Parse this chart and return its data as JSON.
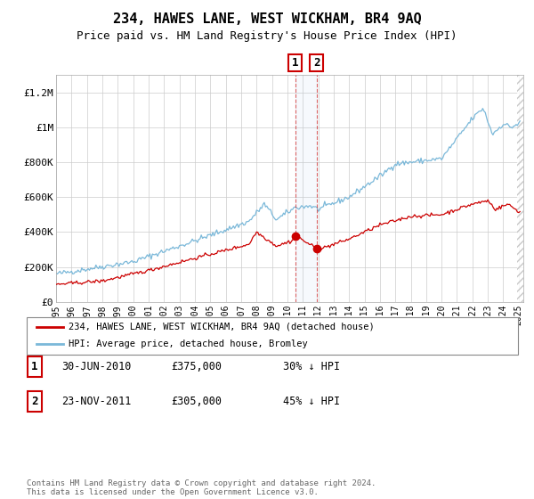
{
  "title": "234, HAWES LANE, WEST WICKHAM, BR4 9AQ",
  "subtitle": "Price paid vs. HM Land Registry's House Price Index (HPI)",
  "title_fontsize": 11,
  "subtitle_fontsize": 9,
  "background_color": "#ffffff",
  "plot_bg_color": "#ffffff",
  "grid_color": "#cccccc",
  "hpi_color": "#7ab8d9",
  "price_color": "#cc0000",
  "ylim": [
    0,
    1300000
  ],
  "yticks": [
    0,
    200000,
    400000,
    600000,
    800000,
    1000000,
    1200000
  ],
  "ytick_labels": [
    "£0",
    "£200K",
    "£400K",
    "£600K",
    "£800K",
    "£1M",
    "£1.2M"
  ],
  "sale1_date": 2010.5,
  "sale1_price": 375000,
  "sale2_date": 2011.9,
  "sale2_price": 305000,
  "vspan_start": 2010.5,
  "vspan_end": 2011.9,
  "vline1": 2010.5,
  "vline2": 2011.9,
  "legend_label_red": "234, HAWES LANE, WEST WICKHAM, BR4 9AQ (detached house)",
  "legend_label_blue": "HPI: Average price, detached house, Bromley",
  "annotation1_date_str": "30-JUN-2010",
  "annotation1_price_str": "£375,000",
  "annotation1_hpi_str": "30% ↓ HPI",
  "annotation2_date_str": "23-NOV-2011",
  "annotation2_price_str": "£305,000",
  "annotation2_hpi_str": "45% ↓ HPI",
  "footer": "Contains HM Land Registry data © Crown copyright and database right 2024.\nThis data is licensed under the Open Government Licence v3.0.",
  "xlim_start": 1995,
  "xlim_end": 2025.3
}
